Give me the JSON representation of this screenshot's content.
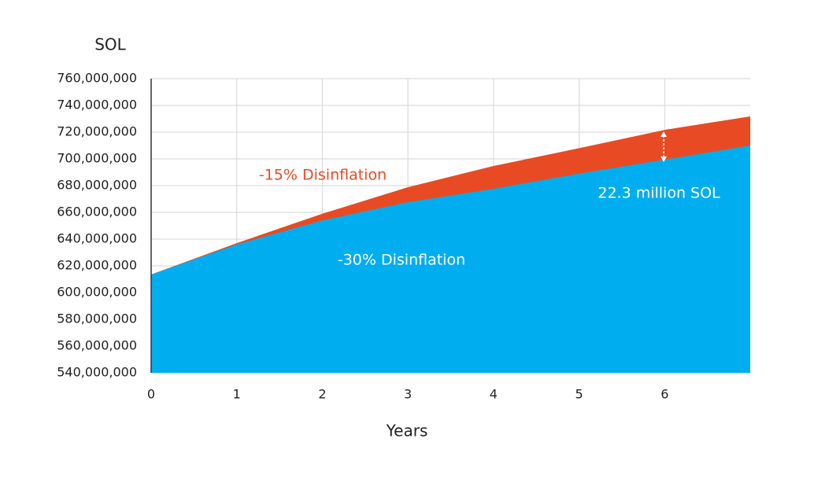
{
  "chart_data": {
    "type": "area",
    "y_label": "SOL",
    "x_label": "Years",
    "x": [
      0,
      1,
      2,
      3,
      4,
      5,
      6,
      7
    ],
    "series": [
      {
        "name": "-15% Disinflation",
        "color": "#e84b24",
        "values": [
          613500000.0,
          637000000.0,
          659000000.0,
          678800000.0,
          694700000.0,
          708000000.0,
          721700000.0,
          731800000.0
        ]
      },
      {
        "name": "-30% Disinflation",
        "color": "#00aeef",
        "values": [
          613500000.0,
          636000000.0,
          654000000.0,
          667600000.0,
          677600000.0,
          689000000.0,
          699400000.0,
          710000000.0
        ]
      }
    ],
    "annotation": "22.3 million SOL",
    "xlim": [
      0,
      7
    ],
    "xticks": [
      0,
      1,
      2,
      3,
      4,
      5,
      6
    ],
    "ylim": [
      540000000,
      760000000
    ],
    "yticks": [
      {
        "value": 540000000,
        "label": "540,000,000"
      },
      {
        "value": 560000000,
        "label": "560,000,000"
      },
      {
        "value": 580000000,
        "label": "580,000,000"
      },
      {
        "value": 600000000,
        "label": "600,000,000"
      },
      {
        "value": 620000000,
        "label": "620,000,000"
      },
      {
        "value": 640000000,
        "label": "640,000,000"
      },
      {
        "value": 660000000,
        "label": "660,000,000"
      },
      {
        "value": 680000000,
        "label": "680,000,000"
      },
      {
        "value": 700000000,
        "label": "700,000,000"
      },
      {
        "value": 720000000,
        "label": "720,000,000"
      },
      {
        "value": 740000000,
        "label": "740,000,000"
      },
      {
        "value": 760000000,
        "label": "760,000,000"
      }
    ],
    "grid": true
  }
}
